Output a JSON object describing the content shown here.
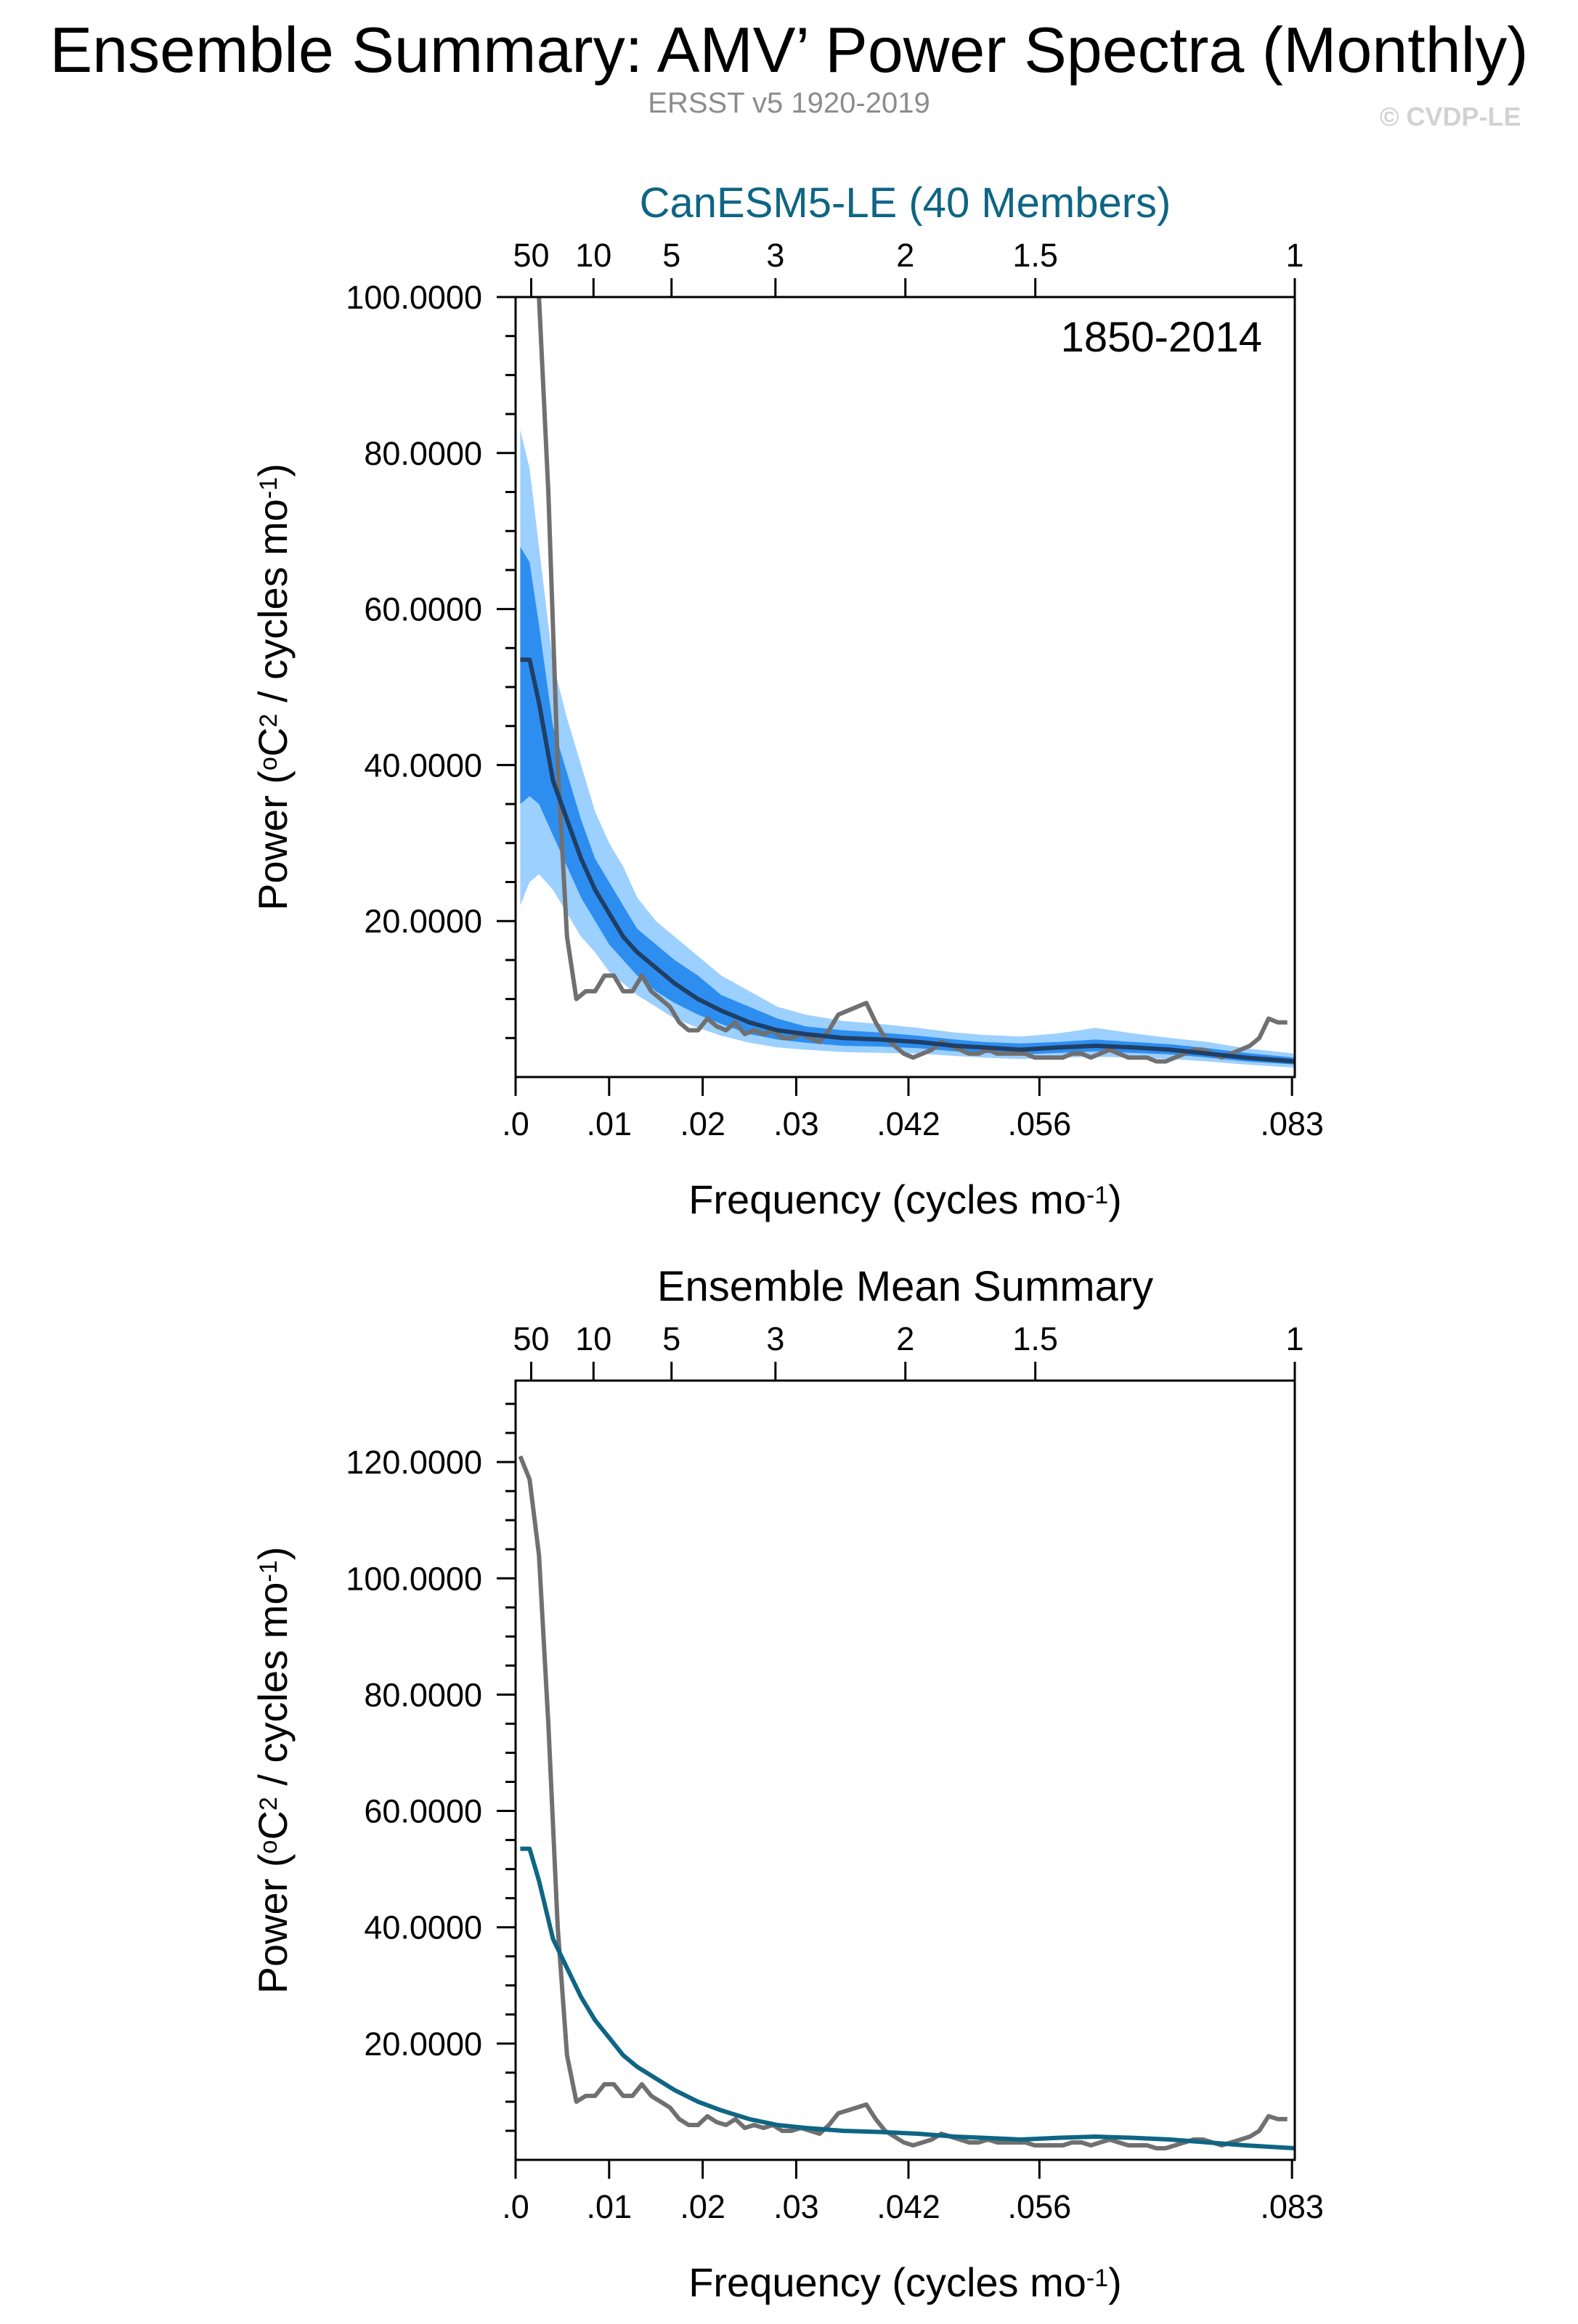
{
  "header": {
    "title": "Ensemble Summary: AMV’ Power Spectra (Monthly)",
    "subtitle": "ERSST v5 1920-2019",
    "credit": "© CVDP-LE"
  },
  "colors": {
    "observed": "#707070",
    "ens_line_top": "#1f3f66",
    "ens_mean_bottom": "#0e6584",
    "band_outer": "#9cd0ff",
    "band_inner": "#2e8ef0",
    "top_title": "#0e6584"
  },
  "chart_data": [
    {
      "type": "line",
      "title": "CanESM5-LE (40 Members)",
      "annotation": "1850-2014",
      "xlabel": "Frequency (cycles mo",
      "xlabel_sup": "-1",
      "xlabel_end": ")",
      "ylabel_parts": [
        "Power (",
        "o",
        "C",
        "2",
        " / cycles mo",
        "-1",
        ")"
      ],
      "xlim": [
        0,
        0.0833
      ],
      "ylim": [
        0,
        100
      ],
      "x_ticks": [
        0,
        0.01,
        0.02,
        0.03,
        0.042,
        0.056,
        0.083
      ],
      "x_tick_labels": [
        ".0",
        ".01",
        ".02",
        ".03",
        ".042",
        ".056",
        ".083"
      ],
      "y_ticks": [
        20,
        40,
        60,
        80,
        100
      ],
      "y_tick_labels": [
        "20.0000",
        "40.0000",
        "60.0000",
        "80.0000",
        "100.0000"
      ],
      "top_ticks": [
        0.00167,
        0.00833,
        0.01667,
        0.02778,
        0.04167,
        0.05556,
        0.0833
      ],
      "top_tick_labels": [
        "50",
        "10",
        "5",
        "3",
        "2",
        "1.5",
        "1"
      ],
      "series": [
        {
          "role": "ensemble_mean",
          "x": [
            0.0005,
            0.0015,
            0.0025,
            0.004,
            0.0055,
            0.007,
            0.0085,
            0.01,
            0.0115,
            0.013,
            0.015,
            0.017,
            0.0195,
            0.022,
            0.025,
            0.028,
            0.031,
            0.035,
            0.039,
            0.043,
            0.047,
            0.05,
            0.054,
            0.058,
            0.062,
            0.066,
            0.07,
            0.074,
            0.078,
            0.0833
          ],
          "y": [
            53.5,
            53.5,
            48,
            38,
            33,
            28,
            24,
            21,
            18,
            16,
            14,
            12,
            10,
            8.5,
            7,
            6,
            5.5,
            5,
            4.8,
            4.5,
            4,
            3.8,
            3.5,
            3.8,
            4,
            3.8,
            3.5,
            3,
            2.5,
            2
          ]
        },
        {
          "role": "inner_band_upper",
          "x": [
            0.0005,
            0.0015,
            0.0025,
            0.004,
            0.0055,
            0.007,
            0.0085,
            0.01,
            0.0115,
            0.013,
            0.015,
            0.017,
            0.0195,
            0.022,
            0.025,
            0.028,
            0.031,
            0.035,
            0.039,
            0.043,
            0.047,
            0.05,
            0.054,
            0.058,
            0.062,
            0.066,
            0.07,
            0.074,
            0.078,
            0.0833
          ],
          "y": [
            68,
            66,
            58,
            45,
            39,
            33,
            28,
            25,
            22,
            19,
            17,
            15,
            13,
            10.5,
            9,
            7.5,
            6.5,
            6,
            5.7,
            5.3,
            4.8,
            4.5,
            4.3,
            4.5,
            4.8,
            4.5,
            4.2,
            3.7,
            3.1,
            2.5
          ]
        },
        {
          "role": "inner_band_lower",
          "x": [
            0.0005,
            0.0015,
            0.0025,
            0.004,
            0.0055,
            0.007,
            0.0085,
            0.01,
            0.0115,
            0.013,
            0.015,
            0.017,
            0.0195,
            0.022,
            0.025,
            0.028,
            0.031,
            0.035,
            0.039,
            0.043,
            0.047,
            0.05,
            0.054,
            0.058,
            0.062,
            0.066,
            0.07,
            0.074,
            0.078,
            0.0833
          ],
          "y": [
            35,
            36,
            35,
            31,
            27,
            23,
            20,
            17,
            15,
            13,
            11,
            9.5,
            8,
            6.8,
            5.5,
            4.8,
            4.4,
            4,
            3.9,
            3.7,
            3.3,
            3.1,
            2.9,
            3.1,
            3.3,
            3.1,
            2.9,
            2.5,
            2,
            1.6
          ]
        },
        {
          "role": "outer_band_upper",
          "x": [
            0.0005,
            0.0015,
            0.0025,
            0.004,
            0.0055,
            0.007,
            0.0085,
            0.01,
            0.0115,
            0.013,
            0.015,
            0.017,
            0.0195,
            0.022,
            0.025,
            0.028,
            0.031,
            0.035,
            0.039,
            0.043,
            0.047,
            0.05,
            0.054,
            0.058,
            0.062,
            0.066,
            0.07,
            0.074,
            0.078,
            0.0833
          ],
          "y": [
            83,
            78,
            68,
            53,
            46,
            40,
            34,
            30,
            27,
            23,
            20,
            18,
            15.5,
            13,
            11,
            9,
            8,
            7.2,
            6.8,
            6.3,
            5.7,
            5.4,
            5.2,
            5.6,
            6.3,
            5.6,
            5,
            4.5,
            3.7,
            3
          ]
        },
        {
          "role": "outer_band_lower",
          "x": [
            0.0005,
            0.0015,
            0.0025,
            0.004,
            0.0055,
            0.007,
            0.0085,
            0.01,
            0.0115,
            0.013,
            0.015,
            0.017,
            0.0195,
            0.022,
            0.025,
            0.028,
            0.031,
            0.035,
            0.039,
            0.043,
            0.047,
            0.05,
            0.054,
            0.058,
            0.062,
            0.066,
            0.07,
            0.074,
            0.078,
            0.0833
          ],
          "y": [
            22,
            25,
            26,
            24,
            21,
            18,
            16,
            13.5,
            12,
            10.5,
            9,
            7.5,
            6.3,
            5.3,
            4.4,
            3.8,
            3.5,
            3.2,
            3.1,
            3,
            2.7,
            2.5,
            2.3,
            2.5,
            2.6,
            2.5,
            2.3,
            2,
            1.6,
            1.2
          ]
        },
        {
          "role": "observed",
          "x": [
            0.0025,
            0.0035,
            0.0045,
            0.0055,
            0.0065,
            0.0075,
            0.0085,
            0.0095,
            0.0105,
            0.0115,
            0.0125,
            0.0135,
            0.0145,
            0.0155,
            0.0165,
            0.0175,
            0.0185,
            0.0195,
            0.0205,
            0.0215,
            0.0225,
            0.0235,
            0.0245,
            0.0255,
            0.0265,
            0.0275,
            0.0285,
            0.0295,
            0.0305,
            0.0315,
            0.0325,
            0.0335,
            0.0345,
            0.0355,
            0.0365,
            0.0375,
            0.0385,
            0.0395,
            0.0405,
            0.0415,
            0.0425,
            0.0435,
            0.0445,
            0.0455,
            0.0465,
            0.0475,
            0.0485,
            0.0495,
            0.0505,
            0.0515,
            0.0525,
            0.0535,
            0.0545,
            0.0555,
            0.0565,
            0.0575,
            0.0585,
            0.0595,
            0.0605,
            0.0615,
            0.0625,
            0.0635,
            0.0645,
            0.0655,
            0.0665,
            0.0675,
            0.0685,
            0.0695,
            0.0705,
            0.0715,
            0.0725,
            0.0735,
            0.0745,
            0.0755,
            0.0765,
            0.0775,
            0.0785,
            0.0795,
            0.0805,
            0.0815,
            0.0825
          ],
          "y": [
            100,
            75,
            40,
            18,
            10,
            11,
            11,
            13,
            13,
            11,
            11,
            13,
            11,
            10,
            9,
            7,
            6,
            6,
            7.5,
            6.5,
            6,
            7,
            5.5,
            6,
            5.5,
            6,
            5,
            5,
            5.5,
            5,
            4.5,
            6,
            8,
            8.5,
            9,
            9.5,
            7,
            5,
            4,
            3,
            2.5,
            3,
            3.5,
            4.5,
            4,
            3.5,
            3,
            3,
            3.5,
            3,
            3,
            3,
            3,
            2.5,
            2.5,
            2.5,
            2.5,
            3,
            3,
            2.5,
            3,
            3.5,
            3,
            2.5,
            2.5,
            2.5,
            2,
            2,
            2.5,
            3,
            3.5,
            3.5,
            3,
            2.5,
            3,
            3.5,
            4,
            5,
            7.5,
            7,
            7
          ]
        }
      ]
    },
    {
      "type": "line",
      "title": "Ensemble Mean Summary",
      "xlabel": "Frequency (cycles mo",
      "xlabel_sup": "-1",
      "xlabel_end": ")",
      "ylabel_parts": [
        "Power (",
        "o",
        "C",
        "2",
        " / cycles mo",
        "-1",
        ")"
      ],
      "xlim": [
        0,
        0.0833
      ],
      "ylim": [
        0,
        134
      ],
      "x_ticks": [
        0,
        0.01,
        0.02,
        0.03,
        0.042,
        0.056,
        0.083
      ],
      "x_tick_labels": [
        ".0",
        ".01",
        ".02",
        ".03",
        ".042",
        ".056",
        ".083"
      ],
      "y_ticks": [
        20,
        40,
        60,
        80,
        100,
        120
      ],
      "y_tick_labels": [
        "20.0000",
        "40.0000",
        "60.0000",
        "80.0000",
        "100.0000",
        "120.0000"
      ],
      "top_ticks": [
        0.00167,
        0.00833,
        0.01667,
        0.02778,
        0.04167,
        0.05556,
        0.0833
      ],
      "top_tick_labels": [
        "50",
        "10",
        "5",
        "3",
        "2",
        "1.5",
        "1"
      ],
      "series": [
        {
          "role": "ensemble_mean",
          "x": [
            0.0005,
            0.0015,
            0.0025,
            0.004,
            0.0055,
            0.007,
            0.0085,
            0.01,
            0.0115,
            0.013,
            0.015,
            0.017,
            0.0195,
            0.022,
            0.025,
            0.028,
            0.031,
            0.035,
            0.039,
            0.043,
            0.047,
            0.05,
            0.054,
            0.058,
            0.062,
            0.066,
            0.07,
            0.074,
            0.078,
            0.0833
          ],
          "y": [
            53.5,
            53.5,
            48,
            38,
            33,
            28,
            24,
            21,
            18,
            16,
            14,
            12,
            10,
            8.5,
            7,
            6,
            5.5,
            5,
            4.8,
            4.5,
            4,
            3.8,
            3.5,
            3.8,
            4,
            3.8,
            3.5,
            3,
            2.5,
            2
          ]
        },
        {
          "role": "observed",
          "x": [
            0.0005,
            0.0015,
            0.0025,
            0.0035,
            0.0045,
            0.0055,
            0.0065,
            0.0075,
            0.0085,
            0.0095,
            0.0105,
            0.0115,
            0.0125,
            0.0135,
            0.0145,
            0.0155,
            0.0165,
            0.0175,
            0.0185,
            0.0195,
            0.0205,
            0.0215,
            0.0225,
            0.0235,
            0.0245,
            0.0255,
            0.0265,
            0.0275,
            0.0285,
            0.0295,
            0.0305,
            0.0315,
            0.0325,
            0.0335,
            0.0345,
            0.0355,
            0.0365,
            0.0375,
            0.0385,
            0.0395,
            0.0405,
            0.0415,
            0.0425,
            0.0435,
            0.0445,
            0.0455,
            0.0465,
            0.0475,
            0.0485,
            0.0495,
            0.0505,
            0.0515,
            0.0525,
            0.0535,
            0.0545,
            0.0555,
            0.0565,
            0.0575,
            0.0585,
            0.0595,
            0.0605,
            0.0615,
            0.0625,
            0.0635,
            0.0645,
            0.0655,
            0.0665,
            0.0675,
            0.0685,
            0.0695,
            0.0705,
            0.0715,
            0.0725,
            0.0735,
            0.0745,
            0.0755,
            0.0765,
            0.0775,
            0.0785,
            0.0795,
            0.0805,
            0.0815,
            0.0825
          ],
          "y": [
            121,
            117,
            104,
            75,
            40,
            18,
            10,
            11,
            11,
            13,
            13,
            11,
            11,
            13,
            11,
            10,
            9,
            7,
            6,
            6,
            7.5,
            6.5,
            6,
            7,
            5.5,
            6,
            5.5,
            6,
            5,
            5,
            5.5,
            5,
            4.5,
            6,
            8,
            8.5,
            9,
            9.5,
            7,
            5,
            4,
            3,
            2.5,
            3,
            3.5,
            4.5,
            4,
            3.5,
            3,
            3,
            3.5,
            3,
            3,
            3,
            3,
            2.5,
            2.5,
            2.5,
            2.5,
            3,
            3,
            2.5,
            3,
            3.5,
            3,
            2.5,
            2.5,
            2.5,
            2,
            2,
            2.5,
            3,
            3.5,
            3.5,
            3,
            2.5,
            3,
            3.5,
            4,
            5,
            7.5,
            7,
            7
          ]
        }
      ]
    }
  ]
}
